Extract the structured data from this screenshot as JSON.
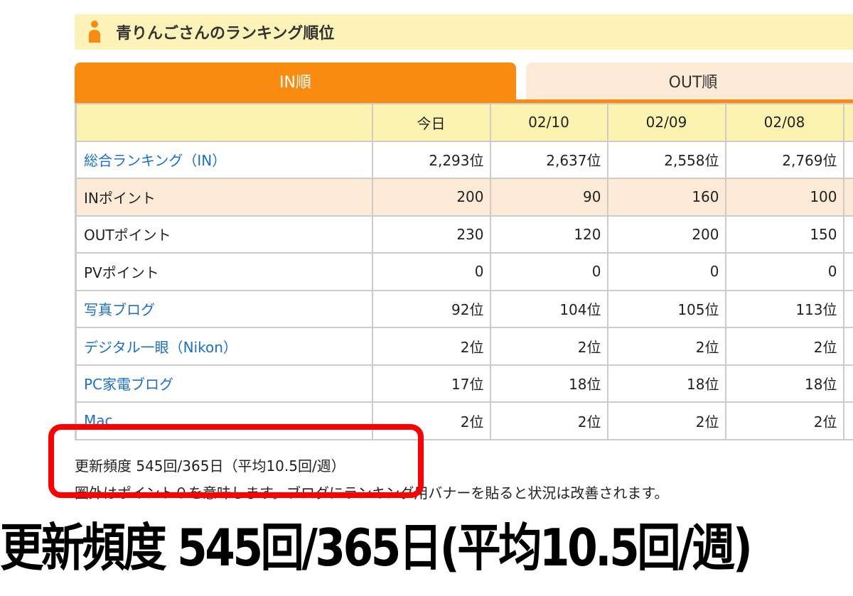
{
  "header": {
    "title": "青りんごさんのランキング順位",
    "icon": "person-icon"
  },
  "tabs": [
    {
      "label": "IN順",
      "active": true
    },
    {
      "label": "OUT順",
      "active": false
    }
  ],
  "table": {
    "columns": [
      "",
      "今日",
      "02/10",
      "02/09",
      "02/08"
    ],
    "rows": [
      {
        "label": "総合ランキング（IN）",
        "link": true,
        "values": [
          "2,293位",
          "2,637位",
          "2,558位",
          "2,769位"
        ]
      },
      {
        "label": "INポイント",
        "link": false,
        "highlight": true,
        "values": [
          "200",
          "90",
          "160",
          "100"
        ]
      },
      {
        "label": "OUTポイント",
        "link": false,
        "values": [
          "230",
          "120",
          "200",
          "150"
        ]
      },
      {
        "label": "PVポイント",
        "link": false,
        "values": [
          "0",
          "0",
          "0",
          "0"
        ]
      },
      {
        "label": "写真ブログ",
        "link": true,
        "values": [
          "92位",
          "104位",
          "105位",
          "113位"
        ]
      },
      {
        "label": "デジタル一眼（Nikon）",
        "link": true,
        "values": [
          "2位",
          "2位",
          "2位",
          "2位"
        ]
      },
      {
        "label": "PC家電ブログ",
        "link": true,
        "values": [
          "17位",
          "18位",
          "18位",
          "18位"
        ]
      },
      {
        "label": "Mac",
        "link": true,
        "values": [
          "2位",
          "2位",
          "2位",
          "2位"
        ]
      }
    ]
  },
  "notes": {
    "frequency": "更新頻度 545回/365日（平均10.5回/週）",
    "info": "圏外はポイント０を意味します。ブログにランキング用バナーを貼ると状況は改善されます。"
  },
  "caption": "更新頻度 545回/365日(平均10.5回/週)",
  "colors": {
    "accent": "#f98c10",
    "highlight": "#ff0000",
    "link": "#1a6fd1"
  }
}
